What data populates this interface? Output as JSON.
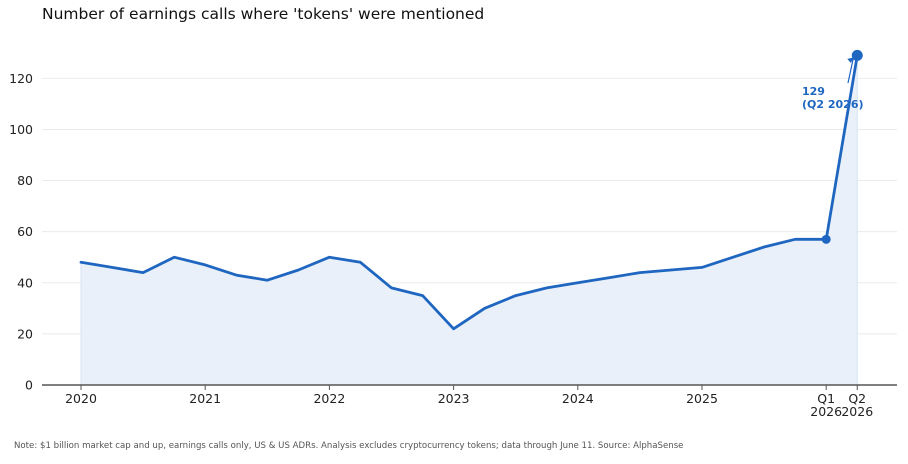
{
  "title": "Number of earnings calls where 'tokens' were mentioned",
  "note": "Note: $1 billion market cap and up, earnings calls only, US & US ADRs. Analysis excludes cryptocurrency tokens; data through June 11.  Source: AlphaSense",
  "colors": {
    "line": "#1f66c1",
    "fill": "#e9f0f9",
    "axis": "#555555",
    "grid": "#ebebeb"
  },
  "chart_data": {
    "type": "area",
    "title": "Number of earnings calls where 'tokens' were mentioned",
    "xlabel": "",
    "ylabel": "",
    "ylim": [
      0,
      135
    ],
    "y_ticks": [
      0,
      20,
      40,
      60,
      80,
      100,
      120
    ],
    "grid": true,
    "x_tick_labels": [
      {
        "q": 0,
        "line1": "2020",
        "line2": ""
      },
      {
        "q": 4,
        "line1": "2021",
        "line2": ""
      },
      {
        "q": 8,
        "line1": "2022",
        "line2": ""
      },
      {
        "q": 12,
        "line1": "2023",
        "line2": ""
      },
      {
        "q": 16,
        "line1": "2024",
        "line2": ""
      },
      {
        "q": 20,
        "line1": "2025",
        "line2": ""
      },
      {
        "q": 24,
        "line1": "Q1",
        "line2": "2026"
      },
      {
        "q": 25,
        "line1": "Q2",
        "line2": "2026"
      }
    ],
    "series": [
      {
        "x": [
          "Q1 2020",
          "Q2 2020",
          "Q3 2020",
          "Q4 2020",
          "Q1 2021",
          "Q2 2021",
          "Q3 2021",
          "Q4 2021",
          "Q1 2022",
          "Q2 2022",
          "Q3 2022",
          "Q4 2022",
          "Q1 2023",
          "Q2 2023",
          "Q3 2023",
          "Q4 2023",
          "Q1 2024",
          "Q2 2024",
          "Q3 2024",
          "Q4 2024",
          "Q1 2025",
          "Q2 2025",
          "Q3 2025",
          "Q4 2025",
          "Q1 2026",
          "Q2 2026"
        ],
        "values": [
          48,
          46,
          44,
          50,
          47,
          43,
          41,
          45,
          50,
          48,
          38,
          35,
          22,
          30,
          35,
          38,
          40,
          42,
          44,
          45,
          46,
          50,
          54,
          57,
          57,
          129
        ]
      }
    ],
    "annotation": {
      "line1": "129",
      "line2": "(Q2 2026)",
      "q": 25,
      "value": 129
    }
  }
}
